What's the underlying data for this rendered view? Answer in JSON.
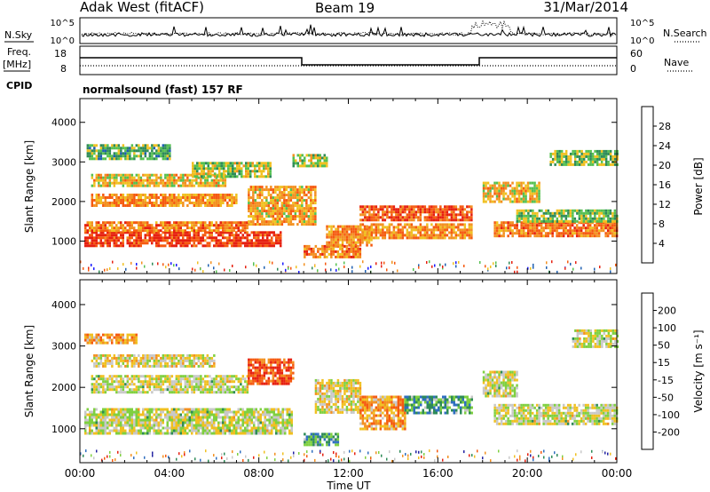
{
  "header": {
    "site": "Adak West (fitACF)",
    "beam": "Beam 19",
    "date": "31/Mar/2014"
  },
  "status_panels": {
    "nsky_label": "N.Sky",
    "nsearch_label": "N.Search",
    "nsky_ticks": [
      "10^5",
      "10^0"
    ],
    "nsearch_ticks": [
      "10^5",
      "10^0"
    ],
    "freq_label": "Freq.",
    "freq_unit": "[MHz]",
    "freq_ticks": [
      "18",
      "8"
    ],
    "nave_label": "Nave",
    "nave_ticks": [
      "60",
      "0"
    ],
    "cpid_label": "CPID",
    "cpid_value": "normalsound (fast) 157 RF"
  },
  "chart_data": [
    {
      "type": "heatmap",
      "name": "power",
      "ylabel": "Slant Range [km]",
      "yticks": [
        "1000",
        "2000",
        "3000",
        "4000"
      ],
      "ylim": [
        180,
        4600
      ],
      "xlim": [
        0,
        24
      ],
      "colorbar_label": "Power [dB]",
      "colorbar_ticks": [
        "4",
        "8",
        "12",
        "16",
        "20",
        "24",
        "28"
      ],
      "colorbar_range": [
        0,
        32
      ],
      "colors": [
        "#1a1aff",
        "#1e5fb0",
        "#2e8b57",
        "#55c050",
        "#f0c020",
        "#f39020",
        "#f55a10",
        "#e62010"
      ],
      "bands": [
        {
          "t0": 0.2,
          "t1": 9.0,
          "r0": 900,
          "r1": 1250,
          "level": 0.9
        },
        {
          "t0": 0.2,
          "t1": 7.5,
          "r0": 1250,
          "r1": 1500,
          "level": 0.75
        },
        {
          "t0": 0.5,
          "t1": 7.0,
          "r0": 1900,
          "r1": 2200,
          "level": 0.7
        },
        {
          "t0": 0.5,
          "t1": 6.5,
          "r0": 2400,
          "r1": 2700,
          "level": 0.6
        },
        {
          "t0": 5.0,
          "t1": 8.5,
          "r0": 2600,
          "r1": 3000,
          "level": 0.5
        },
        {
          "t0": 0.3,
          "t1": 4.0,
          "r0": 3100,
          "r1": 3450,
          "level": 0.4
        },
        {
          "t0": 7.5,
          "t1": 10.5,
          "r0": 1400,
          "r1": 2400,
          "level": 0.65
        },
        {
          "t0": 9.5,
          "t1": 11.0,
          "r0": 2900,
          "r1": 3200,
          "level": 0.5
        },
        {
          "t0": 10.0,
          "t1": 12.5,
          "r0": 600,
          "r1": 900,
          "level": 0.75
        },
        {
          "t0": 11.0,
          "t1": 13.0,
          "r0": 900,
          "r1": 1400,
          "level": 0.7
        },
        {
          "t0": 12.5,
          "t1": 17.5,
          "r0": 1500,
          "r1": 1900,
          "level": 0.85
        },
        {
          "t0": 12.5,
          "t1": 17.5,
          "r0": 1050,
          "r1": 1450,
          "level": 0.7
        },
        {
          "t0": 18.5,
          "t1": 24.0,
          "r0": 1100,
          "r1": 1500,
          "level": 0.75
        },
        {
          "t0": 19.5,
          "t1": 24.0,
          "r0": 1500,
          "r1": 1800,
          "level": 0.45
        },
        {
          "t0": 18.0,
          "t1": 20.5,
          "r0": 2000,
          "r1": 2500,
          "level": 0.6
        },
        {
          "t0": 21.0,
          "t1": 24.0,
          "r0": 2900,
          "r1": 3300,
          "level": 0.45
        }
      ]
    },
    {
      "type": "heatmap",
      "name": "velocity",
      "ylabel": "Slant Range [km]",
      "yticks": [
        "1000",
        "2000",
        "3000",
        "4000"
      ],
      "ylim": [
        180,
        4600
      ],
      "xlim": [
        0,
        24
      ],
      "xlabel": "Time UT",
      "xticks": [
        "00:00",
        "04:00",
        "08:00",
        "12:00",
        "16:00",
        "20:00",
        "00:00"
      ],
      "colorbar_label": "Velocity [m s⁻¹]",
      "colorbar_ticks": [
        "200",
        "100",
        "50",
        "15",
        "-15",
        "-50",
        "-100",
        "-200"
      ],
      "colors": [
        "#2020a0",
        "#2f6fc0",
        "#2e8b57",
        "#7fd040",
        "#c8c8c8",
        "#f0c020",
        "#f39020",
        "#f55a10",
        "#e62010"
      ],
      "bands": [
        {
          "t0": 0.2,
          "t1": 9.5,
          "r0": 900,
          "r1": 1500,
          "level": 0.5
        },
        {
          "t0": 0.5,
          "t1": 7.5,
          "r0": 1900,
          "r1": 2300,
          "level": 0.5
        },
        {
          "t0": 0.5,
          "t1": 6.0,
          "r0": 2500,
          "r1": 2800,
          "level": 0.55
        },
        {
          "t0": 7.5,
          "t1": 9.5,
          "r0": 2100,
          "r1": 2700,
          "level": 0.85
        },
        {
          "t0": 10.5,
          "t1": 12.5,
          "r0": 1400,
          "r1": 2200,
          "level": 0.55
        },
        {
          "t0": 12.5,
          "t1": 14.5,
          "r0": 1000,
          "r1": 1800,
          "level": 0.7
        },
        {
          "t0": 14.5,
          "t1": 17.5,
          "r0": 1400,
          "r1": 1800,
          "level": 0.3
        },
        {
          "t0": 10.0,
          "t1": 11.5,
          "r0": 600,
          "r1": 900,
          "level": 0.3
        },
        {
          "t0": 18.5,
          "t1": 24.0,
          "r0": 1100,
          "r1": 1600,
          "level": 0.5
        },
        {
          "t0": 18.0,
          "t1": 19.5,
          "r0": 1800,
          "r1": 2400,
          "level": 0.5
        },
        {
          "t0": 22.0,
          "t1": 24.0,
          "r0": 3000,
          "r1": 3400,
          "level": 0.5
        },
        {
          "t0": 0.2,
          "t1": 2.5,
          "r0": 3050,
          "r1": 3300,
          "level": 0.7
        }
      ]
    }
  ]
}
